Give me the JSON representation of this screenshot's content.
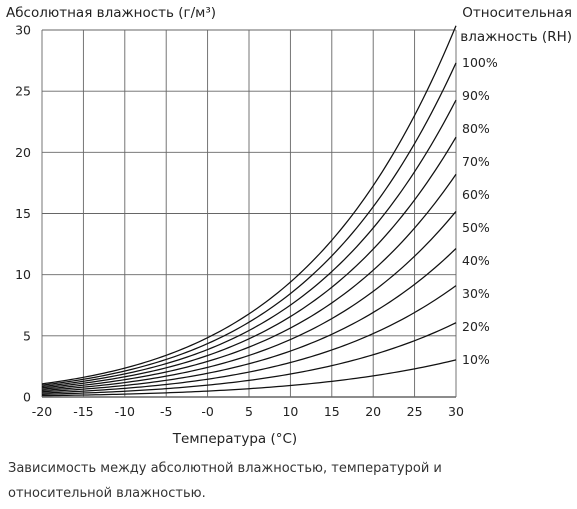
{
  "chart_data": {
    "type": "line",
    "title": "",
    "ylabel": "Абсолютная влажность (г/м³)",
    "xlabel": "Температура (°C)",
    "legend_title": "Относительная влажность (RH)",
    "legend_title_lines": [
      "Относительная",
      "влажность (RH)"
    ],
    "legend_placement": "right",
    "grid": true,
    "xlim": [
      -20,
      30
    ],
    "ylim": [
      0,
      30
    ],
    "x_ticks": [
      -20,
      -15,
      -10,
      -5,
      0,
      5,
      10,
      15,
      20,
      25,
      30
    ],
    "x_tick_labels": [
      "-20",
      "-15",
      "-10",
      "-5",
      "-0",
      "5",
      "10",
      "15",
      "20",
      "25",
      "30"
    ],
    "y_ticks": [
      0,
      5,
      10,
      15,
      20,
      25,
      30
    ],
    "y_tick_labels": [
      "0",
      "5",
      "10",
      "15",
      "20",
      "25",
      "30"
    ],
    "x": [
      -20,
      -15,
      -10,
      -5,
      0,
      5,
      10,
      15,
      20,
      25,
      30
    ],
    "series": [
      {
        "name": "10%",
        "values": [
          0.09,
          0.14,
          0.21,
          0.32,
          0.49,
          0.68,
          0.94,
          1.28,
          1.73,
          2.3,
          3.04
        ]
      },
      {
        "name": "20%",
        "values": [
          0.18,
          0.28,
          0.43,
          0.65,
          0.97,
          1.36,
          1.88,
          2.56,
          3.46,
          4.61,
          6.07
        ]
      },
      {
        "name": "30%",
        "values": [
          0.27,
          0.42,
          0.64,
          0.97,
          1.46,
          2.04,
          2.82,
          3.85,
          5.19,
          6.91,
          9.11
        ]
      },
      {
        "name": "40%",
        "values": [
          0.35,
          0.56,
          0.86,
          1.3,
          1.94,
          2.72,
          3.76,
          5.13,
          6.92,
          9.22,
          12.15
        ]
      },
      {
        "name": "50%",
        "values": [
          0.44,
          0.7,
          1.07,
          1.62,
          2.43,
          3.4,
          4.7,
          6.41,
          8.65,
          11.52,
          15.19
        ]
      },
      {
        "name": "60%",
        "values": [
          0.53,
          0.83,
          1.29,
          1.95,
          2.92,
          4.08,
          5.64,
          7.69,
          10.38,
          13.83,
          18.22
        ]
      },
      {
        "name": "70%",
        "values": [
          0.62,
          0.97,
          1.5,
          2.27,
          3.4,
          4.76,
          6.58,
          8.97,
          12.11,
          16.13,
          21.26
        ]
      },
      {
        "name": "80%",
        "values": [
          0.71,
          1.11,
          1.71,
          2.6,
          3.89,
          5.44,
          7.52,
          10.25,
          13.84,
          18.43,
          24.3
        ]
      },
      {
        "name": "90%",
        "values": [
          0.8,
          1.25,
          1.93,
          2.92,
          4.37,
          6.12,
          8.46,
          11.54,
          15.57,
          20.74,
          27.34
        ]
      },
      {
        "name": "100%",
        "values": [
          0.89,
          1.39,
          2.14,
          3.25,
          4.86,
          6.8,
          9.4,
          12.82,
          17.3,
          23.04,
          30.37
        ]
      }
    ]
  },
  "caption": "Зависимость между абсолютной влажностью, температурой и относительной влажностью."
}
